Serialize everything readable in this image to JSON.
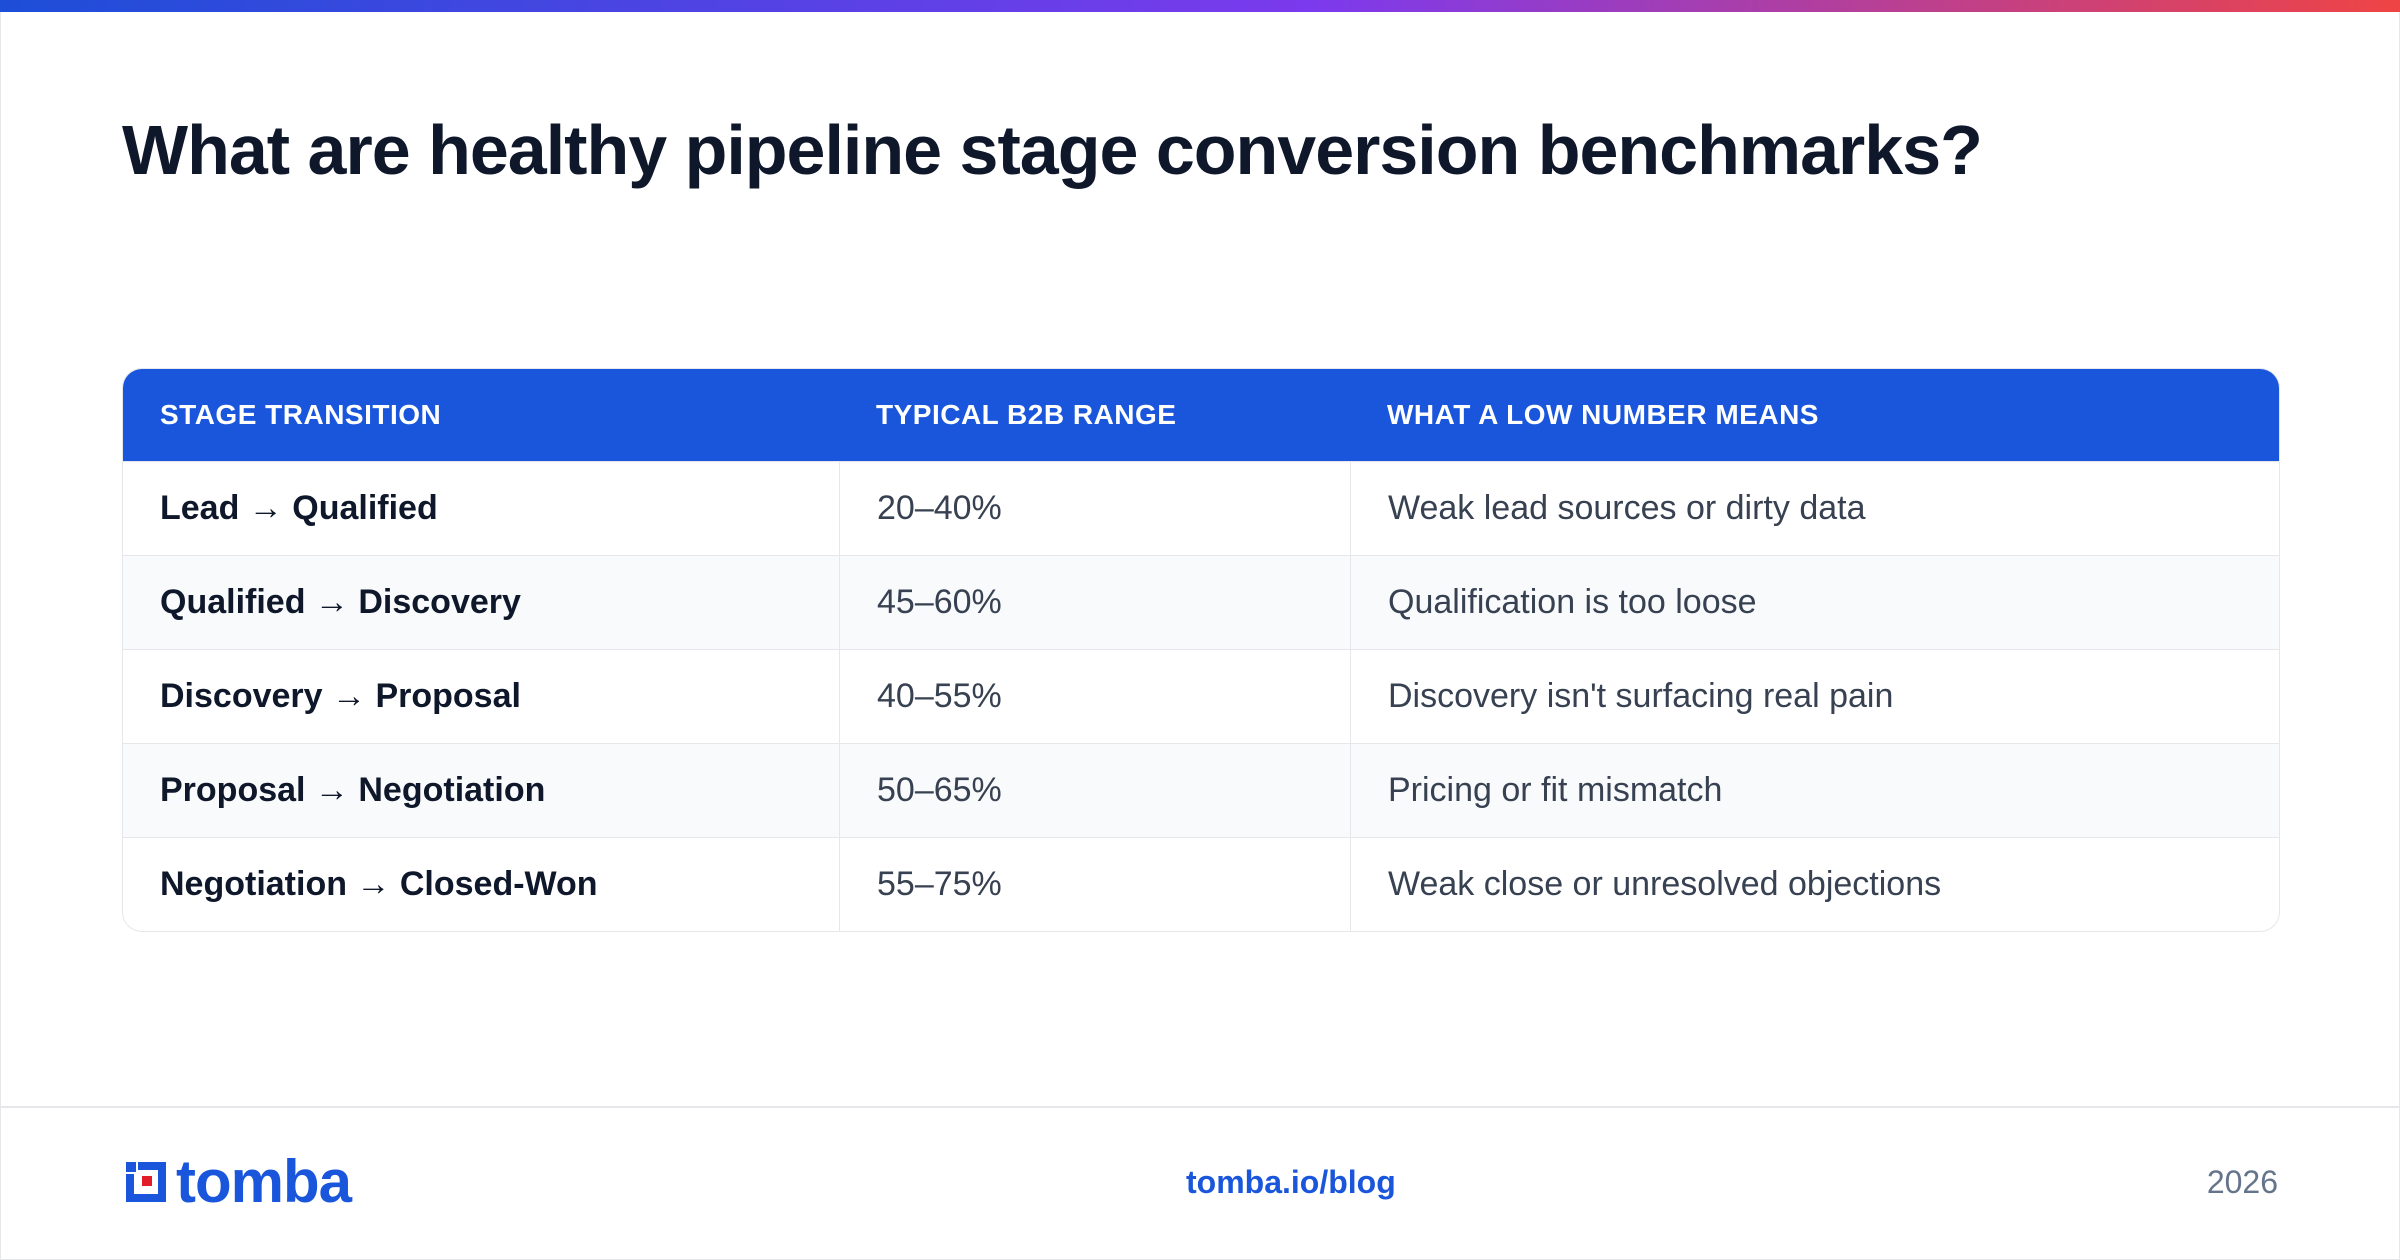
{
  "page": {
    "title": "What are healthy pipeline stage conversion benchmarks?"
  },
  "table": {
    "headers": [
      "STAGE TRANSITION",
      "TYPICAL B2B RANGE",
      "WHAT A LOW NUMBER MEANS"
    ],
    "rows": [
      {
        "stage": "Lead → Qualified",
        "range": "20–40%",
        "meaning": "Weak lead sources or dirty data"
      },
      {
        "stage": "Qualified → Discovery",
        "range": "45–60%",
        "meaning": "Qualification is too loose"
      },
      {
        "stage": "Discovery → Proposal",
        "range": "40–55%",
        "meaning": "Discovery isn't surfacing real pain"
      },
      {
        "stage": "Proposal → Negotiation",
        "range": "50–65%",
        "meaning": "Pricing or fit mismatch"
      },
      {
        "stage": "Negotiation → Closed-Won",
        "range": "55–75%",
        "meaning": "Weak close or unresolved objections"
      }
    ]
  },
  "footer": {
    "logo_text": "tomba",
    "url": "tomba.io/blog",
    "year": "2026"
  },
  "colors": {
    "brand_blue": "#1a56db",
    "title_text": "#0f172a",
    "logo_accent_red": "#e11d2a"
  },
  "icons": {
    "logo": "tomba-logo-icon"
  }
}
